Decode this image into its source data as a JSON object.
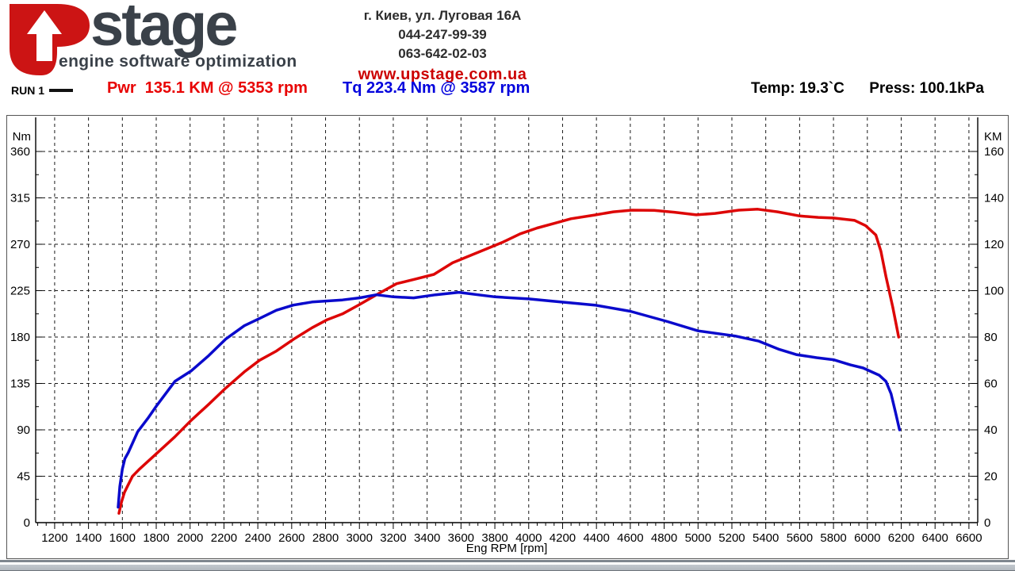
{
  "header": {
    "logo": {
      "wordmark": "stage",
      "tagline": "engine software optimization",
      "mark_icon": "up-arrow-logo"
    },
    "contact": {
      "address": "г. Киев, ул. Луговая 16А",
      "phone1": "044-247-99-39",
      "phone2": "063-642-02-03",
      "website": "www.upstage.com.ua"
    }
  },
  "run_bar": {
    "run_label": "RUN 1",
    "power_reading": "Pwr  135.1 KM @ 5353 rpm",
    "torque_reading": "Tq 223.4 Nm @ 3587 rpm",
    "temp_reading": "Temp: 19.3`C",
    "pressure_reading": "Press: 100.1kPa"
  },
  "colors": {
    "logo_red": "#cc1414",
    "logo_gray": "#3a4149",
    "power_red": "#dd0606",
    "torque_blue": "#0a0acc",
    "grid_black": "#1a1a1a",
    "website_red": "#cc0000"
  },
  "chart_data": {
    "type": "line",
    "grid": "dashed",
    "x_axis": {
      "label": "Eng RPM [rpm]",
      "min": 1088,
      "max": 6652,
      "major_ticks": [
        1200,
        1400,
        1600,
        1800,
        2000,
        2200,
        2400,
        2600,
        2800,
        3000,
        3200,
        3400,
        3600,
        3800,
        4000,
        4200,
        4400,
        4600,
        4800,
        5000,
        5200,
        5400,
        5600,
        5800,
        6000,
        6200,
        6400,
        6600
      ],
      "minor_step": 50
    },
    "y_left": {
      "label": "Nm",
      "min": 0,
      "max": 360,
      "ticks": [
        0,
        45,
        90,
        135,
        180,
        225,
        270,
        315,
        360
      ],
      "minor_step": 22.5
    },
    "y_right": {
      "label": "KM",
      "min": 0,
      "max": 160,
      "ticks": [
        0,
        20,
        40,
        60,
        80,
        100,
        120,
        140,
        160
      ],
      "minor_step": 10
    },
    "series": [
      {
        "name": "Power",
        "axis": "right",
        "unit": "KM",
        "color": "#dd0606",
        "peak_label": "135.1 KM @ 5353 rpm",
        "points": [
          [
            1580,
            4
          ],
          [
            1595,
            9
          ],
          [
            1612,
            13
          ],
          [
            1632,
            16
          ],
          [
            1660,
            20
          ],
          [
            1700,
            23
          ],
          [
            1790,
            29
          ],
          [
            1910,
            37
          ],
          [
            2005,
            44
          ],
          [
            2110,
            51
          ],
          [
            2210,
            58
          ],
          [
            2320,
            65
          ],
          [
            2410,
            70
          ],
          [
            2510,
            74
          ],
          [
            2610,
            79
          ],
          [
            2720,
            84
          ],
          [
            2810,
            87.5
          ],
          [
            2900,
            90
          ],
          [
            3000,
            94
          ],
          [
            3120,
            99
          ],
          [
            3220,
            103
          ],
          [
            3330,
            105
          ],
          [
            3440,
            107
          ],
          [
            3550,
            112
          ],
          [
            3650,
            115
          ],
          [
            3750,
            118
          ],
          [
            3850,
            121
          ],
          [
            3950,
            124.5
          ],
          [
            4050,
            127
          ],
          [
            4150,
            129
          ],
          [
            4250,
            131
          ],
          [
            4390,
            132.6
          ],
          [
            4500,
            134
          ],
          [
            4610,
            134.7
          ],
          [
            4740,
            134.6
          ],
          [
            4860,
            133.8
          ],
          [
            4990,
            132.7
          ],
          [
            5100,
            133.3
          ],
          [
            5240,
            134.7
          ],
          [
            5353,
            135.1
          ],
          [
            5470,
            134
          ],
          [
            5600,
            132.2
          ],
          [
            5710,
            131.6
          ],
          [
            5800,
            131.3
          ],
          [
            5925,
            130.3
          ],
          [
            5990,
            128
          ],
          [
            6050,
            124
          ],
          [
            6080,
            117
          ],
          [
            6110,
            106
          ],
          [
            6150,
            93
          ],
          [
            6185,
            80
          ]
        ]
      },
      {
        "name": "Torque",
        "axis": "left",
        "unit": "Nm",
        "color": "#0a0acc",
        "peak_label": "223.4 Nm @ 3587 rpm",
        "points": [
          [
            1575,
            15
          ],
          [
            1585,
            35
          ],
          [
            1600,
            52
          ],
          [
            1615,
            62
          ],
          [
            1635,
            68
          ],
          [
            1690,
            88
          ],
          [
            1750,
            101
          ],
          [
            1805,
            114
          ],
          [
            1910,
            137
          ],
          [
            2005,
            147
          ],
          [
            2110,
            162
          ],
          [
            2210,
            178
          ],
          [
            2320,
            191
          ],
          [
            2410,
            198
          ],
          [
            2510,
            206
          ],
          [
            2610,
            211
          ],
          [
            2720,
            214
          ],
          [
            2810,
            215
          ],
          [
            2900,
            216
          ],
          [
            3000,
            218
          ],
          [
            3100,
            221
          ],
          [
            3200,
            219
          ],
          [
            3320,
            218
          ],
          [
            3450,
            221
          ],
          [
            3587,
            223.4
          ],
          [
            3700,
            221
          ],
          [
            3800,
            219
          ],
          [
            3900,
            218
          ],
          [
            4000,
            217
          ],
          [
            4190,
            214
          ],
          [
            4390,
            211
          ],
          [
            4600,
            205
          ],
          [
            4820,
            195
          ],
          [
            5000,
            186
          ],
          [
            5220,
            181
          ],
          [
            5360,
            176
          ],
          [
            5480,
            168
          ],
          [
            5580,
            163
          ],
          [
            5700,
            160
          ],
          [
            5800,
            158
          ],
          [
            5900,
            153
          ],
          [
            5975,
            150
          ],
          [
            6070,
            143
          ],
          [
            6110,
            137
          ],
          [
            6140,
            125
          ],
          [
            6165,
            108
          ],
          [
            6190,
            90
          ]
        ]
      }
    ]
  }
}
